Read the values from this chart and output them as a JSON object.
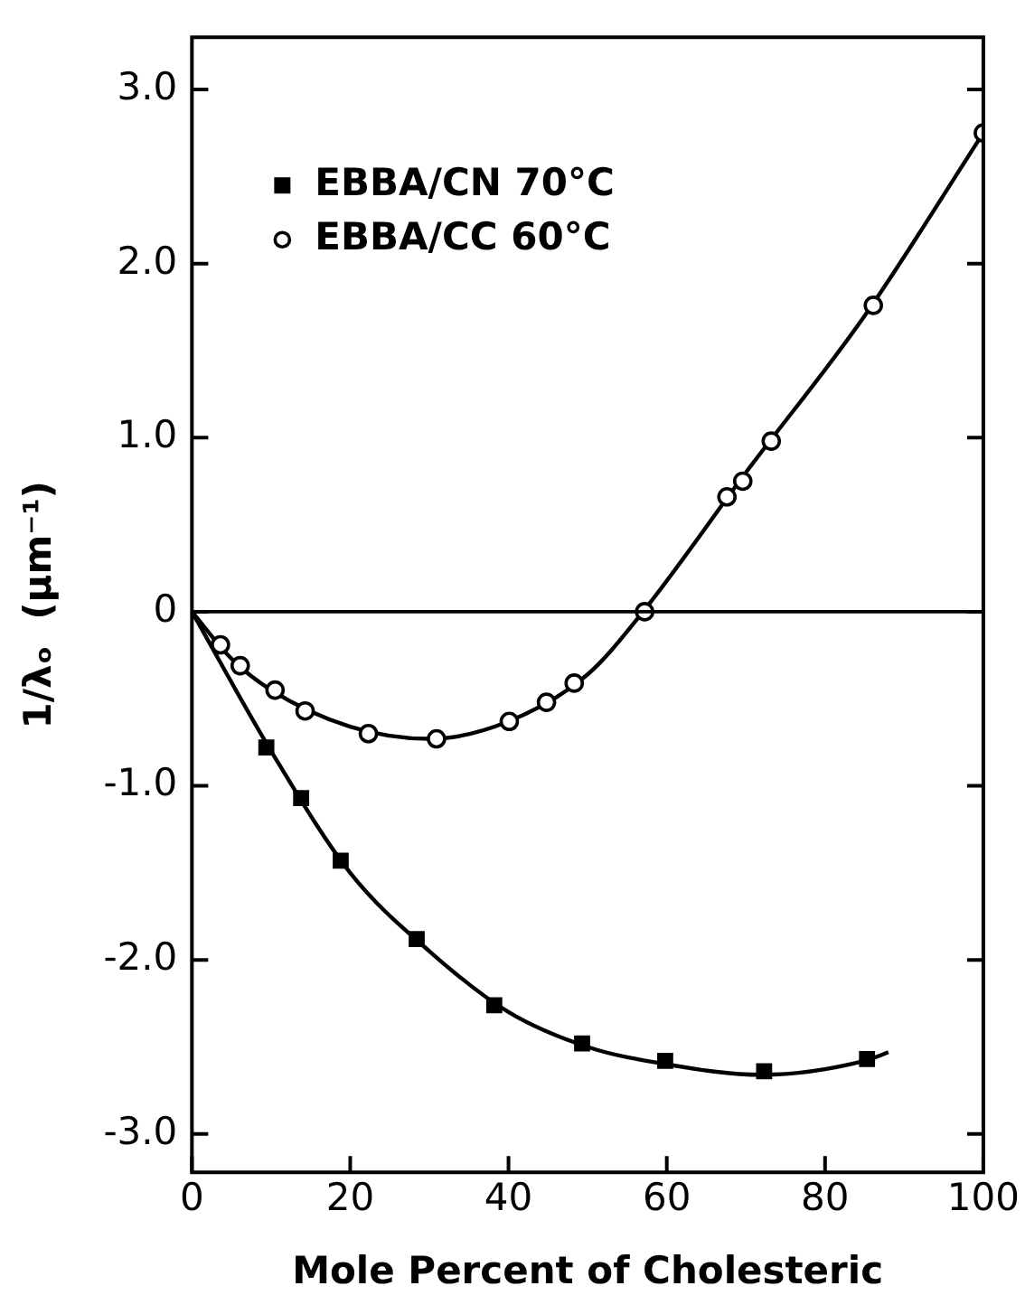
{
  "chart_data": {
    "type": "scatter",
    "xlabel": "Mole Percent of Cholesteric",
    "ylabel": "1/λₒ  (μm⁻¹)",
    "xlim": [
      0,
      100
    ],
    "xticks": [
      0,
      20,
      40,
      60,
      80,
      100
    ],
    "ylim": [
      -3.22,
      3.3
    ],
    "yticks": [
      {
        "value": -3,
        "label": "-3.0"
      },
      {
        "value": -2,
        "label": "-2.0"
      },
      {
        "value": -1,
        "label": "-1.0"
      },
      0,
      {
        "value": 1,
        "label": "1.0"
      },
      {
        "value": 2,
        "label": "2.0"
      },
      {
        "value": 3,
        "label": "3.0"
      }
    ],
    "grid": false,
    "legend": "top left",
    "ref_lines": [
      {
        "axis": "y",
        "value": 0,
        "color": "#000000"
      }
    ],
    "series": [
      {
        "name": "EBBA/CN 70°C",
        "marker": "square",
        "color": "#000000",
        "x": [
          9.4,
          13.8,
          18.8,
          28.4,
          38.2,
          49.3,
          59.8,
          72.3,
          85.3
        ],
        "values": [
          -0.78,
          -1.07,
          -1.43,
          -1.88,
          -2.26,
          -2.48,
          -2.58,
          -2.64,
          -2.57
        ]
      },
      {
        "name": "EBBA/CC 60°C",
        "marker": "circle",
        "color": "#000000",
        "x": [
          3.6,
          6.1,
          10.5,
          14.3,
          22.3,
          30.9,
          40.1,
          44.8,
          48.3,
          57.2,
          67.6,
          69.6,
          73.2,
          86.1,
          100
        ],
        "values": [
          -0.19,
          -0.31,
          -0.45,
          -0.57,
          -0.7,
          -0.73,
          -0.63,
          -0.52,
          -0.41,
          0,
          0.66,
          0.75,
          0.98,
          1.76,
          2.75
        ]
      },
      {
        "type": "line",
        "marker": "none",
        "color": "#000000",
        "x": [
          0,
          10,
          20,
          30,
          40,
          50,
          60,
          72,
          85,
          88
        ],
        "values": [
          0,
          -0.8,
          -1.5,
          -1.95,
          -2.3,
          -2.5,
          -2.6,
          -2.66,
          -2.58,
          -2.53
        ]
      },
      {
        "type": "line",
        "marker": "none",
        "color": "#000000",
        "x": [
          0,
          5,
          10,
          20,
          30,
          40,
          50,
          57,
          70,
          85,
          100
        ],
        "values": [
          0,
          -0.27,
          -0.45,
          -0.66,
          -0.73,
          -0.63,
          -0.36,
          0,
          0.8,
          1.7,
          2.75
        ]
      }
    ]
  }
}
